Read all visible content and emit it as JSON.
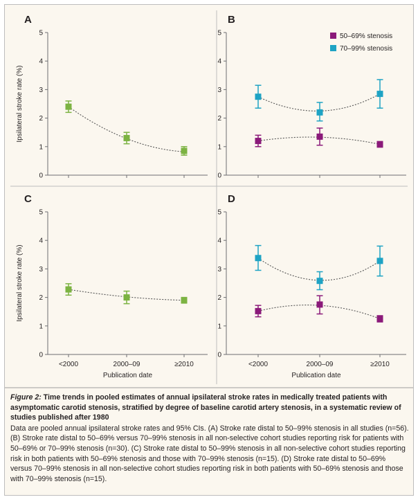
{
  "colors": {
    "green": "#7cb342",
    "purple": "#8b1a7a",
    "teal": "#1ea3c4",
    "axis": "#6d6e71",
    "trend": "#555555",
    "background": "#fbf7ef"
  },
  "y_axis_title": "Ipsilateral stroke rate (%)",
  "x_axis_title": "Publication date",
  "legend": [
    {
      "label": "50–69% stenosis",
      "color": "#8b1a7a"
    },
    {
      "label": "70–99% stenosis",
      "color": "#1ea3c4"
    }
  ],
  "chart_data": [
    {
      "panel": "A",
      "type": "scatter",
      "categories": [
        "<2000",
        "2000–09",
        "≥2010"
      ],
      "ylim": [
        0,
        5
      ],
      "yticks": [
        0,
        1,
        2,
        3,
        4,
        5
      ],
      "show_x_labels": false,
      "show_y_title": true,
      "legend": false,
      "series": [
        {
          "color": "#7cb342",
          "values": [
            2.4,
            1.3,
            0.85
          ],
          "ci_low": [
            2.2,
            1.1,
            0.7
          ],
          "ci_high": [
            2.6,
            1.5,
            1.0
          ],
          "trend": [
            2.4,
            1.28,
            0.82
          ]
        }
      ]
    },
    {
      "panel": "B",
      "type": "scatter",
      "categories": [
        "<2000",
        "2000–09",
        "≥2010"
      ],
      "ylim": [
        0,
        5
      ],
      "yticks": [
        0,
        1,
        2,
        3,
        4,
        5
      ],
      "show_x_labels": false,
      "show_y_title": false,
      "legend": true,
      "series": [
        {
          "name": "50–69% stenosis",
          "color": "#8b1a7a",
          "values": [
            1.2,
            1.35,
            1.08
          ],
          "ci_low": [
            1.0,
            1.05,
            0.98
          ],
          "ci_high": [
            1.4,
            1.65,
            1.18
          ],
          "trend": [
            1.2,
            1.33,
            1.08
          ]
        },
        {
          "name": "70–99% stenosis",
          "color": "#1ea3c4",
          "values": [
            2.75,
            2.2,
            2.85
          ],
          "ci_low": [
            2.35,
            1.9,
            2.35
          ],
          "ci_high": [
            3.15,
            2.55,
            3.35
          ],
          "trend": [
            2.75,
            2.25,
            2.85
          ]
        }
      ]
    },
    {
      "panel": "C",
      "type": "scatter",
      "categories": [
        "<2000",
        "2000–09",
        "≥2010"
      ],
      "ylim": [
        0,
        5
      ],
      "yticks": [
        0,
        1,
        2,
        3,
        4,
        5
      ],
      "show_x_labels": true,
      "show_y_title": true,
      "legend": false,
      "series": [
        {
          "color": "#7cb342",
          "values": [
            2.28,
            2.0,
            1.9
          ],
          "ci_low": [
            2.08,
            1.78,
            1.8
          ],
          "ci_high": [
            2.48,
            2.22,
            2.0
          ],
          "trend": [
            2.28,
            2.02,
            1.9
          ]
        }
      ]
    },
    {
      "panel": "D",
      "type": "scatter",
      "categories": [
        "<2000",
        "2000–09",
        "≥2010"
      ],
      "ylim": [
        0,
        5
      ],
      "yticks": [
        0,
        1,
        2,
        3,
        4,
        5
      ],
      "show_x_labels": true,
      "show_y_title": false,
      "legend": false,
      "series": [
        {
          "name": "50–69% stenosis",
          "color": "#8b1a7a",
          "values": [
            1.52,
            1.75,
            1.25
          ],
          "ci_low": [
            1.32,
            1.42,
            1.14
          ],
          "ci_high": [
            1.72,
            2.06,
            1.36
          ],
          "trend": [
            1.52,
            1.72,
            1.25
          ]
        },
        {
          "name": "70–99% stenosis",
          "color": "#1ea3c4",
          "values": [
            3.38,
            2.58,
            3.28
          ],
          "ci_low": [
            2.95,
            2.27,
            2.75
          ],
          "ci_high": [
            3.82,
            2.9,
            3.8
          ],
          "trend": [
            3.38,
            2.6,
            3.28
          ]
        }
      ]
    }
  ],
  "caption": {
    "label": "Figure 2:",
    "title": " Time trends in pooled estimates of annual ipsilateral stroke rates in medically treated patients with asymptomatic carotid stenosis, stratified by degree of baseline carotid artery stenosis, in a systematic review of studies published after 1980",
    "body": "Data are pooled annual ipsilateral stroke rates and 95% CIs. (A) Stroke rate distal to 50–99% stenosis in all studies (n=56). (B) Stroke rate distal to 50–69% versus 70–99% stenosis in all non-selective cohort studies reporting risk for patients with 50–69% or 70–99% stenosis (n=30). (C) Stroke rate distal to 50–99% stenosis in all non-selective cohort studies reporting risk in both patients with 50–69% stenosis and those with 70–99% stenosis (n=15). (D) Stroke rate distal to 50–69% versus 70–99% stenosis in all non-selective cohort studies reporting risk in both patients with 50–69% stenosis and those with 70–99% stenosis (n=15)."
  }
}
